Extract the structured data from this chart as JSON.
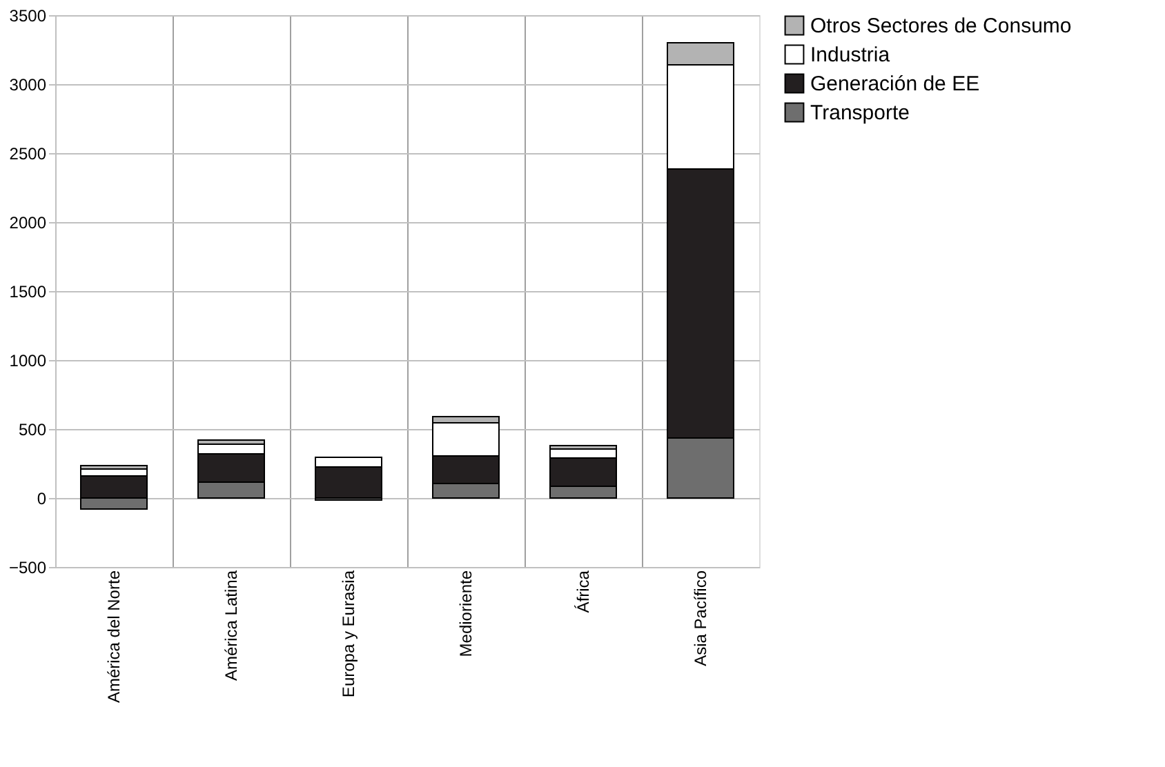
{
  "chart_data": {
    "type": "bar",
    "stacked": true,
    "categories": [
      "América del Norte",
      "América Latina",
      "Europa y Eurasia",
      "Medioriente",
      "África",
      "Asia Pacífico"
    ],
    "series": [
      {
        "name": "Transporte",
        "color": "#6e6e6e",
        "values": [
          -80,
          115,
          -15,
          105,
          85,
          435
        ]
      },
      {
        "name": "Generación de EE",
        "color": "#231f20",
        "values": [
          160,
          205,
          225,
          200,
          205,
          1950
        ]
      },
      {
        "name": "Industria",
        "color": "#ffffff",
        "values": [
          50,
          70,
          70,
          240,
          65,
          755
        ]
      },
      {
        "name": "Otros Sectores de Consumo",
        "color": "#b3b3b3",
        "values": [
          25,
          30,
          null,
          45,
          25,
          160
        ]
      }
    ],
    "ylim": [
      -500,
      3500
    ],
    "yticks": [
      -500,
      0,
      500,
      1000,
      1500,
      2000,
      2500,
      3000,
      3500
    ],
    "grid": true,
    "legend": "right"
  }
}
